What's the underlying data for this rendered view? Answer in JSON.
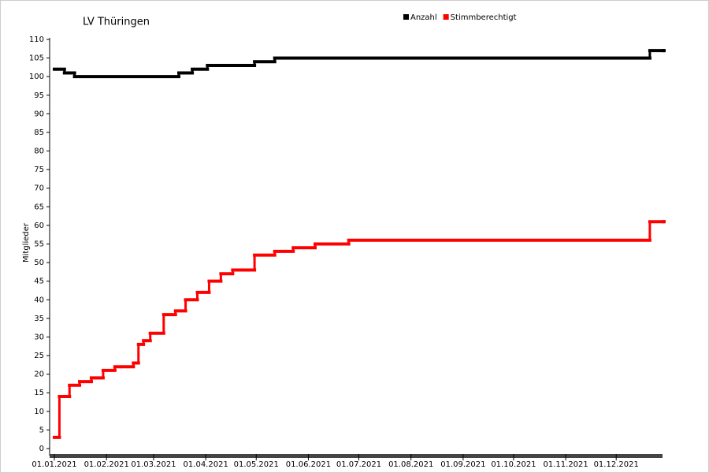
{
  "chart_data": {
    "type": "line",
    "step": true,
    "title": "LV Thüringen",
    "ylabel": "Mitglieder",
    "ylim": [
      0,
      110
    ],
    "yticks": [
      0,
      5,
      10,
      15,
      20,
      25,
      30,
      35,
      40,
      45,
      50,
      55,
      60,
      65,
      70,
      75,
      80,
      85,
      90,
      95,
      100,
      105,
      110
    ],
    "xlim": [
      "01.01.2021",
      "29.12.2021"
    ],
    "xticks": [
      "01.01.2021",
      "01.02.2021",
      "01.03.2021",
      "01.04.2021",
      "01.05.2021",
      "01.06.2021",
      "01.07.2021",
      "01.08.2021",
      "01.09.2021",
      "01.10.2021",
      "01.11.2021",
      "01.12.2021"
    ],
    "series": [
      {
        "name": "Anzahl",
        "color": "#000000",
        "x": [
          "01.01.2021",
          "07.01.2021",
          "13.01.2021",
          "16.03.2021",
          "24.03.2021",
          "02.04.2021",
          "30.04.2021",
          "12.05.2021",
          "21.12.2021",
          "29.12.2021"
        ],
        "values": [
          102,
          101,
          100,
          101,
          102,
          103,
          104,
          105,
          107,
          107
        ]
      },
      {
        "name": "Stimmberechtigt",
        "color": "#ff0000",
        "x": [
          "01.01.2021",
          "04.01.2021",
          "10.01.2021",
          "16.01.2021",
          "23.01.2021",
          "30.01.2021",
          "06.02.2021",
          "17.02.2021",
          "20.02.2021",
          "23.02.2021",
          "27.02.2021",
          "07.03.2021",
          "14.03.2021",
          "20.03.2021",
          "27.03.2021",
          "03.04.2021",
          "10.04.2021",
          "17.04.2021",
          "30.04.2021",
          "12.05.2021",
          "23.05.2021",
          "05.06.2021",
          "25.06.2021",
          "21.12.2021",
          "29.12.2021"
        ],
        "values": [
          3,
          14,
          17,
          18,
          19,
          21,
          22,
          23,
          28,
          29,
          31,
          36,
          37,
          40,
          42,
          45,
          47,
          48,
          52,
          53,
          54,
          55,
          56,
          61,
          61
        ]
      }
    ]
  }
}
